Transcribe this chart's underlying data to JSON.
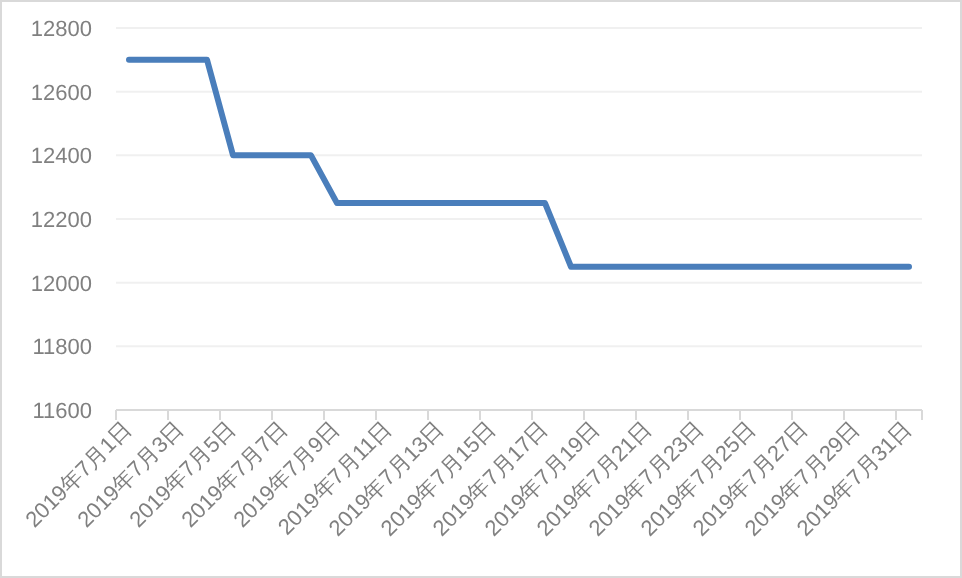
{
  "chart_data": {
    "type": "line",
    "categories": [
      "2019年7月1日",
      null,
      "2019年7月3日",
      null,
      "2019年7月5日",
      null,
      "2019年7月7日",
      null,
      "2019年7月9日",
      null,
      "2019年7月11日",
      null,
      "2019年7月13日",
      null,
      "2019年7月15日",
      null,
      "2019年7月17日",
      null,
      "2019年7月19日",
      null,
      "2019年7月21日",
      null,
      "2019年7月23日",
      null,
      "2019年7月25日",
      null,
      "2019年7月27日",
      null,
      "2019年7月29日",
      null,
      "2019年7月31日"
    ],
    "series": [
      {
        "color": "#4a7ebb",
        "values": [
          12700,
          12700,
          12700,
          12700,
          12400,
          12400,
          12400,
          12400,
          12250,
          12250,
          12250,
          12250,
          12250,
          12250,
          12250,
          12250,
          12250,
          12050,
          12050,
          12050,
          12050,
          12050,
          12050,
          12050,
          12050,
          12050,
          12050,
          12050,
          12050,
          12050,
          12050
        ]
      }
    ],
    "ylim": [
      11600,
      12800
    ],
    "yticks": [
      11600,
      11800,
      12000,
      12200,
      12400,
      12600,
      12800
    ],
    "grid": "y",
    "marker": "none",
    "line_style": "solid"
  }
}
